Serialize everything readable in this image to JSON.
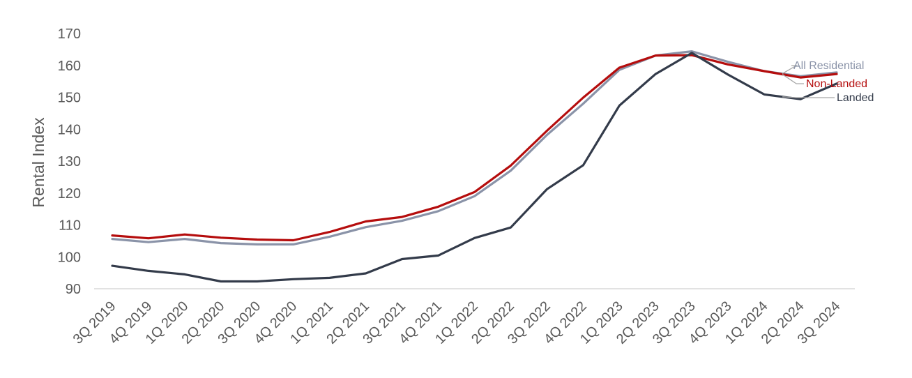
{
  "chart_data": {
    "type": "line",
    "title": "",
    "xlabel": "",
    "ylabel": "Rental Index",
    "ylim": [
      90,
      170
    ],
    "yticks": [
      90,
      100,
      110,
      120,
      130,
      140,
      150,
      160,
      170
    ],
    "grid": false,
    "legend": "inline-right",
    "categories": [
      "3Q 2019",
      "4Q 2019",
      "1Q 2020",
      "2Q 2020",
      "3Q 2020",
      "4Q 2020",
      "1Q 2021",
      "2Q 2021",
      "3Q 2021",
      "4Q 2021",
      "1Q 2022",
      "2Q 2022",
      "3Q 2022",
      "4Q 2022",
      "1Q 2023",
      "2Q 2023",
      "3Q 2023",
      "4Q 2023",
      "1Q 2024",
      "2Q 2024",
      "3Q 2024"
    ],
    "series": [
      {
        "name": "All Residential",
        "color": "#8a93a8",
        "values": [
          105.6,
          104.6,
          105.6,
          104.3,
          103.9,
          103.9,
          106.3,
          109.3,
          111.3,
          114.3,
          119.0,
          127.0,
          138.2,
          148.0,
          158.6,
          163.1,
          164.4,
          161.1,
          158.2,
          156.6,
          157.8
        ]
      },
      {
        "name": "Non-Landed",
        "color": "#b50d0d",
        "values": [
          106.7,
          105.8,
          107.0,
          106.0,
          105.4,
          105.2,
          107.8,
          111.1,
          112.5,
          115.7,
          120.3,
          128.6,
          139.5,
          149.9,
          159.3,
          163.1,
          163.2,
          160.3,
          158.2,
          156.2,
          157.3
        ]
      },
      {
        "name": "Landed",
        "color": "#333b4a",
        "values": [
          97.2,
          95.6,
          94.5,
          92.3,
          92.3,
          93.0,
          93.4,
          94.8,
          99.3,
          100.4,
          105.9,
          109.2,
          121.2,
          128.7,
          147.4,
          157.3,
          163.9,
          157.1,
          150.9,
          149.4,
          154.3
        ]
      }
    ]
  }
}
